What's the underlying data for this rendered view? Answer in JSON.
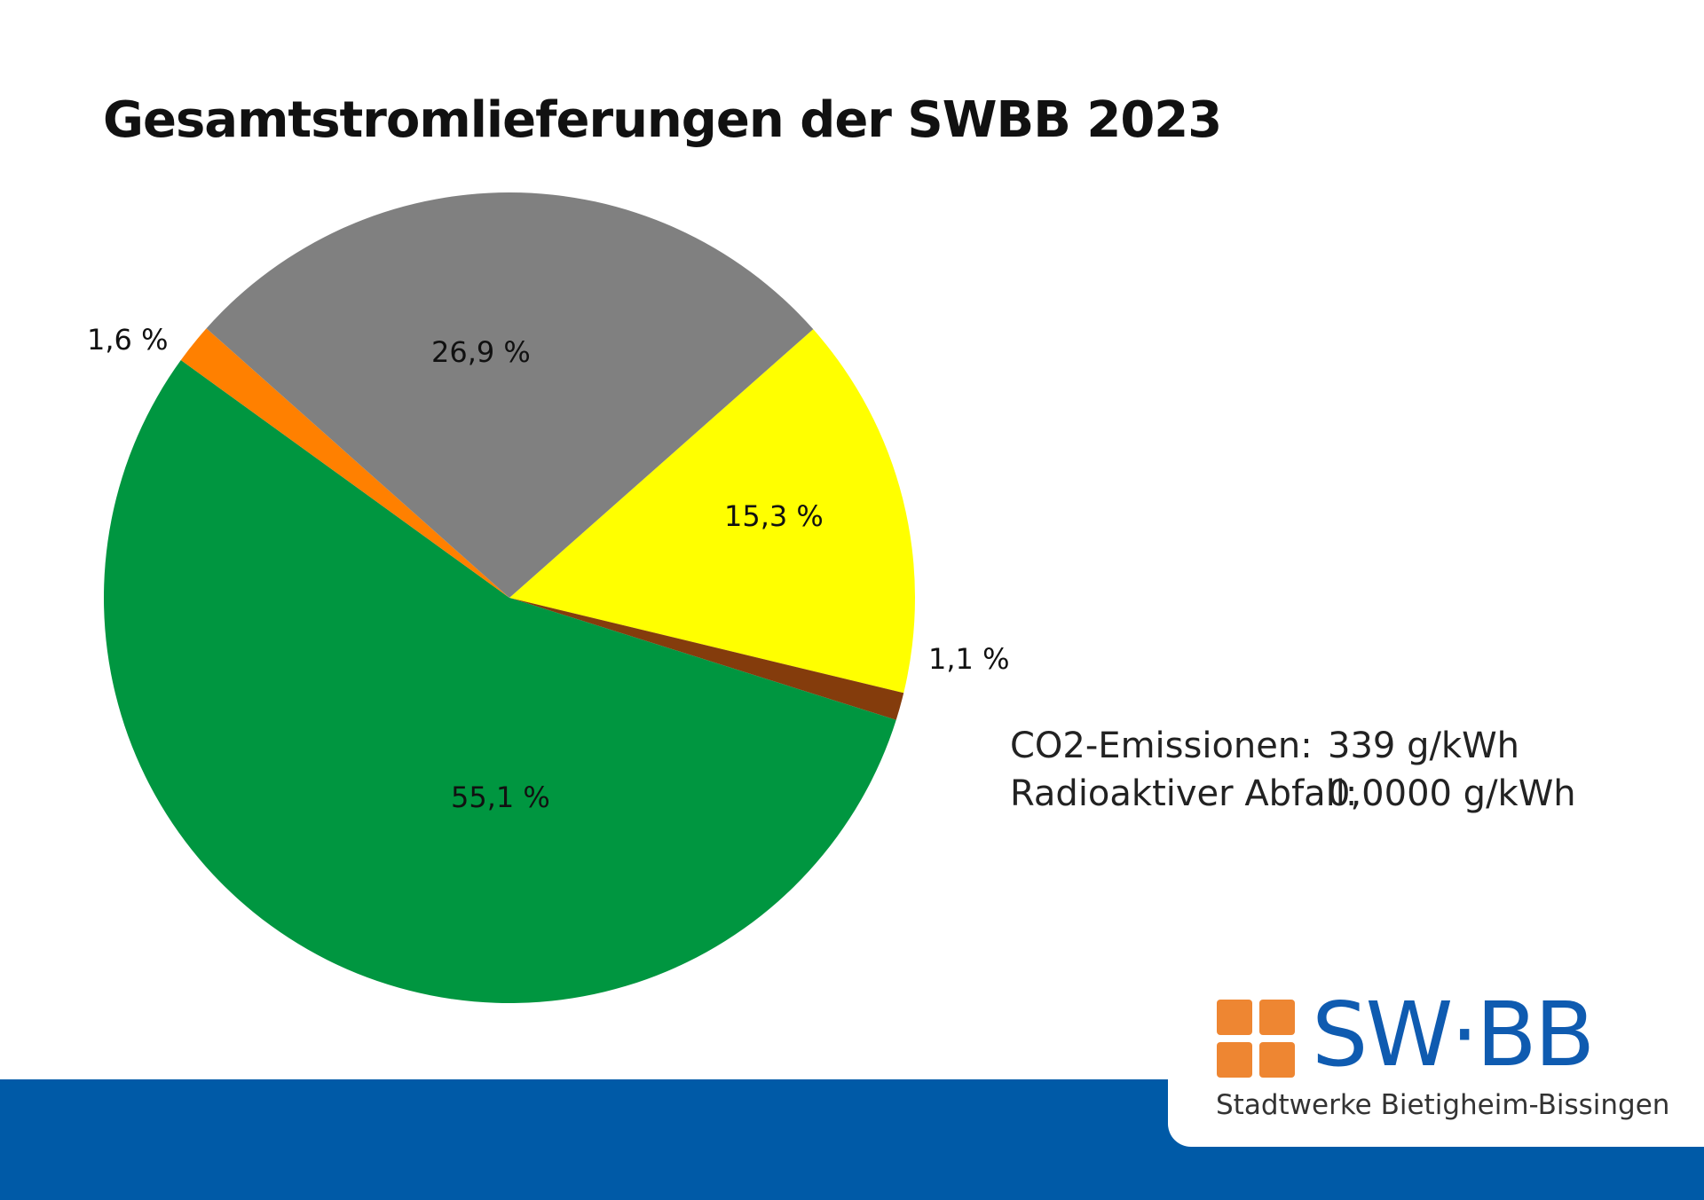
{
  "chart_data": {
    "type": "pie",
    "title": "Gesamtstromlieferungen der SWBB 2023",
    "slices": [
      {
        "label": "15,3 %",
        "value": 15.3,
        "color": "#ffff00"
      },
      {
        "label": "1,1 %",
        "value": 1.1,
        "color": "#843c0c"
      },
      {
        "label": "55,1 %",
        "value": 55.1,
        "color": "#009640"
      },
      {
        "label": "1,6 %",
        "value": 1.6,
        "color": "#ff8000"
      },
      {
        "label": "26,9 %",
        "value": 26.9,
        "color": "#808080"
      }
    ],
    "legend": "none",
    "grid": false
  },
  "info": {
    "co2_label": "CO2-Emissionen:",
    "co2_value": "339 g/kWh",
    "waste_label": "Radioaktiver Abfall:",
    "waste_value": "0,0000 g/kWh"
  },
  "logo": {
    "word": "SW·BB",
    "subtitle": "Stadtwerke Bietigheim-Bissingen",
    "orange": "#ee8632",
    "blue": "#0f5bb0"
  },
  "footer": {
    "color": "#005aa7"
  }
}
